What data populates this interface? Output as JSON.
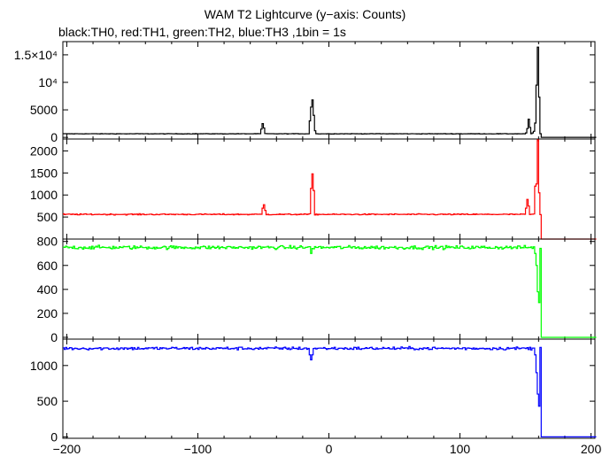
{
  "title": "WAM T2 Lightcurve (y−axis: Counts)",
  "subtitle": "black:TH0, red:TH1, green:TH2, blue:TH3 ,1bin = 1s",
  "chart_data": {
    "type": "line",
    "title": "WAM T2 Lightcurve (y−axis: Counts)",
    "subtitle": "black:TH0, red:TH1, green:TH2, blue:TH3 ,1bin = 1s",
    "xlim": [
      -203,
      203
    ],
    "x_ticks": [
      -200,
      -100,
      0,
      100,
      200
    ],
    "x_tick_labels": [
      "−200",
      "−100",
      "0",
      "100",
      "200"
    ],
    "panels": [
      {
        "name": "TH0",
        "color": "#000000",
        "ylim": [
          -300,
          17400
        ],
        "y_ticks": [
          0,
          5000,
          10000,
          15000
        ],
        "y_tick_labels": [
          "0",
          "5000",
          "10⁴",
          "1.5×10⁴"
        ],
        "baseline": 650,
        "noise": 70,
        "features": [
          [
            -52,
            1500
          ],
          [
            -51,
            2500
          ],
          [
            -50,
            1700
          ],
          [
            -49,
            700
          ],
          [
            -28,
            700
          ],
          [
            -15,
            3000
          ],
          [
            -14,
            5500
          ],
          [
            -13,
            6800
          ],
          [
            -12,
            4000
          ],
          [
            -11,
            1200
          ],
          [
            150,
            800
          ],
          [
            151,
            1600
          ],
          [
            152,
            3300
          ],
          [
            153,
            1800
          ],
          [
            155,
            800
          ],
          [
            156,
            1100
          ],
          [
            157,
            2600
          ],
          [
            158,
            9500
          ],
          [
            159,
            16400
          ],
          [
            160,
            7300
          ]
        ],
        "after_value": 0
      },
      {
        "name": "TH1",
        "color": "#ff0000",
        "ylim": [
          0,
          2270
        ],
        "y_ticks": [
          500,
          1000,
          1500,
          2000
        ],
        "y_tick_labels": [
          "500",
          "1000",
          "1500",
          "2000"
        ],
        "baseline": 560,
        "noise": 22,
        "features": [
          [
            -51,
            700
          ],
          [
            -50,
            780
          ],
          [
            -49,
            650
          ],
          [
            -14,
            1150
          ],
          [
            -13,
            1480
          ],
          [
            -12,
            1100
          ],
          [
            150,
            700
          ],
          [
            151,
            900
          ],
          [
            152,
            750
          ],
          [
            157,
            1200
          ],
          [
            158,
            1250
          ],
          [
            159,
            2250
          ],
          [
            160,
            1050
          ]
        ],
        "after_value": 0
      },
      {
        "name": "TH2",
        "color": "#00ff00",
        "ylim": [
          -15,
          820
        ],
        "y_ticks": [
          0,
          200,
          400,
          600,
          800
        ],
        "y_tick_labels": [
          "0",
          "200",
          "400",
          "600",
          "800"
        ],
        "baseline": 750,
        "noise": 25,
        "features": [
          [
            -14,
            700
          ],
          [
            157,
            700
          ],
          [
            158,
            600
          ],
          [
            159,
            380
          ],
          [
            160,
            290
          ]
        ],
        "after_value": 0
      },
      {
        "name": "TH3",
        "color": "#0000ff",
        "ylim": [
          -20,
          1370
        ],
        "y_ticks": [
          0,
          500,
          1000
        ],
        "y_tick_labels": [
          "0",
          "500",
          "1000"
        ],
        "baseline": 1240,
        "noise": 35,
        "features": [
          [
            -15,
            1150
          ],
          [
            -14,
            1080
          ],
          [
            -13,
            1150
          ],
          [
            157,
            1150
          ],
          [
            158,
            900
          ],
          [
            159,
            600
          ],
          [
            160,
            430
          ]
        ],
        "after_value": 0
      }
    ],
    "x_start": -203,
    "x_end": 203,
    "cutoff_x": 161
  }
}
